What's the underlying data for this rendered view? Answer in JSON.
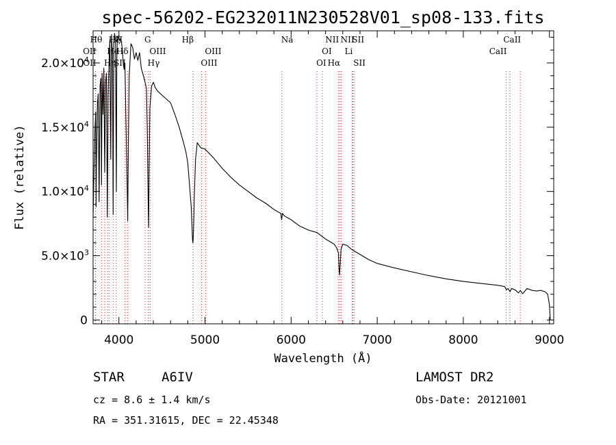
{
  "chart_data": {
    "type": "line",
    "title": "spec-56202-EG232011N230528V01_sp08-133.fits",
    "xlabel": "Wavelength (Å)",
    "ylabel": "Flux (relative)",
    "xlim": [
      3700,
      9050
    ],
    "ylim": [
      -300,
      22500
    ],
    "x_ticks": [
      {
        "value": 4000,
        "label": "4000"
      },
      {
        "value": 5000,
        "label": "5000"
      },
      {
        "value": 6000,
        "label": "6000"
      },
      {
        "value": 7000,
        "label": "7000"
      },
      {
        "value": 8000,
        "label": "8000"
      },
      {
        "value": 9000,
        "label": "9000"
      }
    ],
    "y_ticks": [
      {
        "value": 0,
        "label": "0",
        "mant": "",
        "exp": ""
      },
      {
        "value": 5000,
        "label": "",
        "mant": "5.0×10",
        "exp": "3"
      },
      {
        "value": 10000,
        "label": "",
        "mant": "1.0×10",
        "exp": "4"
      },
      {
        "value": 15000,
        "label": "",
        "mant": "1.5×10",
        "exp": "4"
      },
      {
        "value": 20000,
        "label": "",
        "mant": "2.0×10",
        "exp": "4"
      }
    ],
    "line_color": "#000000",
    "marker_color": "#d62020",
    "series": [
      {
        "x": [
          3700,
          3710,
          3720,
          3730,
          3735,
          3740,
          3750,
          3760,
          3770,
          3775,
          3780,
          3790,
          3798,
          3805,
          3815,
          3825,
          3835,
          3845,
          3855,
          3865,
          3875,
          3885,
          3890,
          3895,
          3905,
          3915,
          3925,
          3933,
          3940,
          3950,
          3960,
          3970,
          3975,
          3980,
          3990,
          4000,
          4010,
          4020,
          4030,
          4040,
          4050,
          4060,
          4070,
          4080,
          4090,
          4102,
          4110,
          4120,
          4140,
          4160,
          4180,
          4200,
          4220,
          4240,
          4260,
          4280,
          4300,
          4320,
          4330,
          4340,
          4345,
          4350,
          4360,
          4380,
          4400,
          4420,
          4450,
          4500,
          4550,
          4600,
          4650,
          4700,
          4750,
          4780,
          4800,
          4820,
          4840,
          4850,
          4855,
          4861,
          4868,
          4875,
          4890,
          4910,
          4950,
          5000,
          5100,
          5200,
          5300,
          5400,
          5500,
          5600,
          5700,
          5800,
          5850,
          5880,
          5890,
          5900,
          5920,
          6000,
          6100,
          6200,
          6300,
          6400,
          6500,
          6530,
          6550,
          6556,
          6563,
          6570,
          6580,
          6600,
          6650,
          6700,
          6800,
          6900,
          7000,
          7200,
          7400,
          7600,
          7800,
          8000,
          8200,
          8400,
          8480,
          8500,
          8520,
          8542,
          8560,
          8600,
          8640,
          8662,
          8690,
          8740,
          8800,
          8850,
          8900,
          8950,
          8980,
          9000,
          9010
        ],
        "y": [
          8000,
          11500,
          14500,
          16200,
          8800,
          12500,
          16800,
          17600,
          9200,
          13500,
          18200,
          18800,
          10500,
          19200,
          16000,
          19600,
          11500,
          18500,
          19200,
          8000,
          17500,
          20000,
          21000,
          21800,
          12500,
          22200,
          20500,
          8200,
          21500,
          22300,
          21800,
          10000,
          20000,
          21500,
          21800,
          22000,
          21700,
          21900,
          21600,
          21000,
          20000,
          19500,
          20000,
          16000,
          12500,
          7700,
          14000,
          19000,
          21500,
          21200,
          20300,
          20800,
          20200,
          20800,
          19600,
          19100,
          18600,
          18000,
          14500,
          9000,
          7200,
          11500,
          16500,
          18200,
          18500,
          18100,
          17800,
          17500,
          17200,
          16900,
          16000,
          15000,
          13800,
          13000,
          12200,
          10500,
          8800,
          7000,
          6200,
          6000,
          7200,
          9500,
          12500,
          13800,
          13400,
          13300,
          12600,
          11800,
          11100,
          10500,
          10000,
          9500,
          9100,
          8600,
          8400,
          8300,
          7800,
          8300,
          8100,
          7800,
          7300,
          7000,
          6800,
          6300,
          5900,
          5600,
          5200,
          4000,
          3500,
          4300,
          5500,
          5900,
          5800,
          5500,
          5100,
          4700,
          4400,
          4050,
          3750,
          3450,
          3200,
          3000,
          2850,
          2700,
          2600,
          2350,
          2450,
          2200,
          2450,
          2350,
          2100,
          2300,
          2050,
          2450,
          2300,
          2250,
          2300,
          2200,
          2000,
          1200,
          0
        ]
      }
    ],
    "spectral_lines": [
      {
        "wave": 3727,
        "label": "OII",
        "row": 1,
        "ha": "end"
      },
      {
        "wave": 3729,
        "label": "OII",
        "row": 2,
        "ha": "end"
      },
      {
        "wave": 3798,
        "label": "Hθ",
        "row": 0,
        "ha": "end"
      },
      {
        "wave": 3835,
        "label": "Hη",
        "row": 2,
        "ha": "start"
      },
      {
        "wave": 3869,
        "label": "He",
        "row": 1,
        "ha": "start"
      },
      {
        "wave": 3889,
        "label": "Hζ",
        "row": 0,
        "ha": "start"
      },
      {
        "wave": 3933,
        "label": "K",
        "row": 0,
        "ha": "start"
      },
      {
        "wave": 3968,
        "label": "H",
        "row": 0,
        "ha": "start"
      },
      {
        "wave": 4072,
        "label": "SII",
        "row": 2,
        "ha": "end"
      },
      {
        "wave": 4102,
        "label": "Hδ",
        "row": 1,
        "ha": "end"
      },
      {
        "wave": 4304,
        "label": "G",
        "row": 0,
        "ha": "start"
      },
      {
        "wave": 4341,
        "label": "Hγ",
        "row": 2,
        "ha": "start"
      },
      {
        "wave": 4363,
        "label": "OIII",
        "row": 1,
        "ha": "start"
      },
      {
        "wave": 4861,
        "label": "Hβ",
        "row": 0,
        "ha": "end"
      },
      {
        "wave": 4959,
        "label": "OIII",
        "row": 2,
        "ha": "start"
      },
      {
        "wave": 5007,
        "label": "OIII",
        "row": 1,
        "ha": "start"
      },
      {
        "wave": 5892,
        "label": "Na",
        "row": 0,
        "ha": "start"
      },
      {
        "wave": 6300,
        "label": "OI",
        "row": 2,
        "ha": "start"
      },
      {
        "wave": 6364,
        "label": "OI",
        "row": 1,
        "ha": "start"
      },
      {
        "wave": 6548,
        "label": "NII",
        "row": 0,
        "ha": "end"
      },
      {
        "wave": 6563,
        "label": "Hα",
        "row": 2,
        "ha": "end"
      },
      {
        "wave": 6583,
        "label": "NII",
        "row": 0,
        "ha": "start"
      },
      {
        "wave": 6708,
        "label": "Li",
        "row": 1,
        "ha": "end"
      },
      {
        "wave": 6716,
        "label": "SII",
        "row": 0,
        "ha": "start"
      },
      {
        "wave": 6731,
        "label": "SII",
        "row": 2,
        "ha": "start"
      },
      {
        "wave": 8498,
        "label": "CaII",
        "row": 1,
        "ha": "end"
      },
      {
        "wave": 8542,
        "label": "",
        "row": 1,
        "ha": "end"
      },
      {
        "wave": 8662,
        "label": "CaII",
        "row": 0,
        "ha": "end"
      }
    ],
    "info": {
      "object_type": "STAR",
      "subclass": "A6IV",
      "cz": "cz = 8.6 ± 1.4 km/s",
      "coords": "RA = 351.31615, DEC =  22.45348",
      "survey": "LAMOST DR2",
      "obs_date": "Obs-Date: 20121001"
    }
  }
}
